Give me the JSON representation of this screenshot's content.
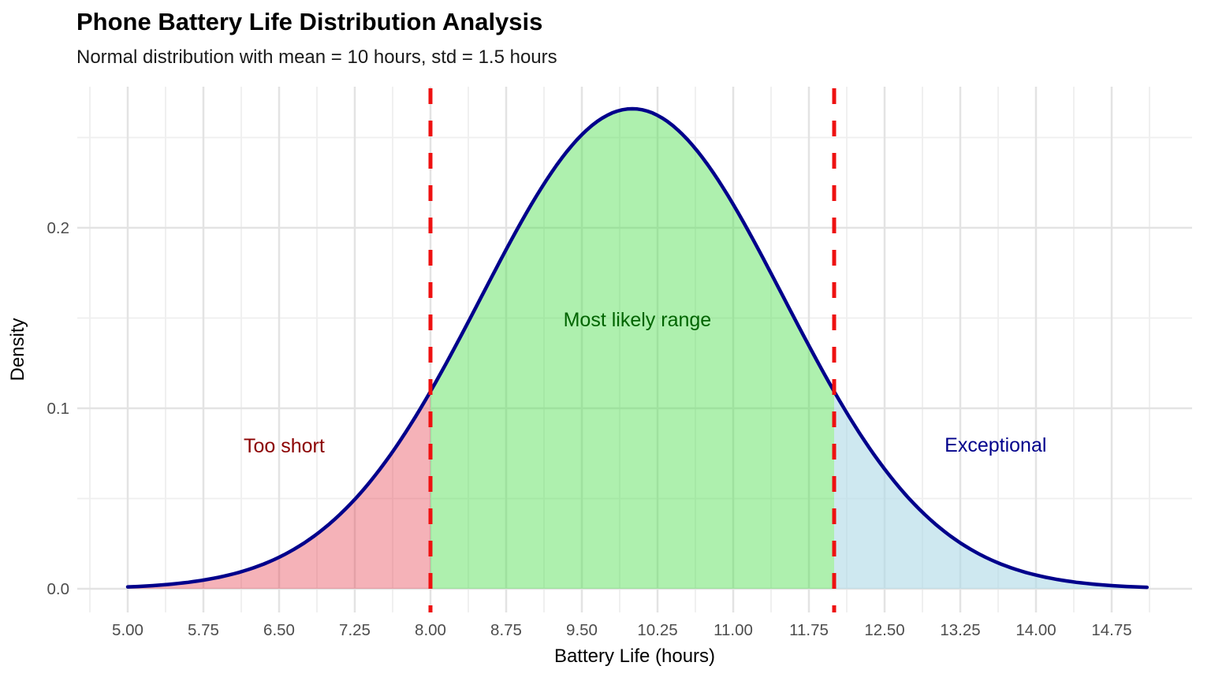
{
  "header": {
    "title": "Phone Battery Life Distribution Analysis",
    "subtitle": "Normal distribution with mean = 10 hours, std = 1.5 hours"
  },
  "chart_data": {
    "type": "area",
    "title": "Phone Battery Life Distribution Analysis",
    "subtitle": "Normal distribution with mean = 10 hours, std = 1.5 hours",
    "xlabel": "Battery Life (hours)",
    "ylabel": "Density",
    "distribution": {
      "name": "normal",
      "mean": 10,
      "std": 1.5,
      "peak_density": 0.26596
    },
    "x_range": [
      5.0,
      15.1
    ],
    "ylim": [
      -0.013,
      0.278
    ],
    "grid": {
      "visible": true,
      "major_color": "#E3E3E3",
      "minor_color": "#EFEFEF"
    },
    "x_axis": {
      "ticks": [
        {
          "value": 5.0,
          "label": "5.00"
        },
        {
          "value": 5.75,
          "label": "5.75"
        },
        {
          "value": 6.5,
          "label": "6.50"
        },
        {
          "value": 7.25,
          "label": "7.25"
        },
        {
          "value": 8.0,
          "label": "8.00"
        },
        {
          "value": 8.75,
          "label": "8.75"
        },
        {
          "value": 9.5,
          "label": "9.50"
        },
        {
          "value": 10.25,
          "label": "10.25"
        },
        {
          "value": 11.0,
          "label": "11.00"
        },
        {
          "value": 11.75,
          "label": "11.75"
        },
        {
          "value": 12.5,
          "label": "12.50"
        },
        {
          "value": 13.25,
          "label": "13.25"
        },
        {
          "value": 14.0,
          "label": "14.00"
        },
        {
          "value": 14.75,
          "label": "14.75"
        }
      ],
      "tick_color": "#4D4D4D"
    },
    "y_axis": {
      "ticks": [
        {
          "value": 0.0,
          "label": "0.0"
        },
        {
          "value": 0.1,
          "label": "0.1"
        },
        {
          "value": 0.2,
          "label": "0.2"
        }
      ],
      "minor_values": [
        0.05,
        0.15,
        0.25
      ],
      "tick_color": "#4D4D4D"
    },
    "curve": {
      "color": "#00008B",
      "width": 4.5
    },
    "regions": [
      {
        "name": "too-short",
        "from": 5.0,
        "to": 8.0,
        "fill": "rgba(230,63,78,0.40)",
        "label": "Too short",
        "label_color": "#8B0000",
        "label_x": 6.55,
        "label_y": 0.079
      },
      {
        "name": "most-likely",
        "from": 8.0,
        "to": 12.0,
        "fill": "rgba(75,222,75,0.45)",
        "label": "Most likely range",
        "label_color": "#006400",
        "label_x": 10.05,
        "label_y": 0.149
      },
      {
        "name": "exceptional",
        "from": 12.0,
        "to": 15.1,
        "fill": "rgba(173,216,230,0.60)",
        "label": "Exceptional",
        "label_color": "#00008B",
        "label_x": 13.6,
        "label_y": 0.0795
      }
    ],
    "vlines": {
      "positions": [
        8.0,
        12.0
      ],
      "color": "#EE1111",
      "style": "dashed",
      "width": 5
    }
  }
}
